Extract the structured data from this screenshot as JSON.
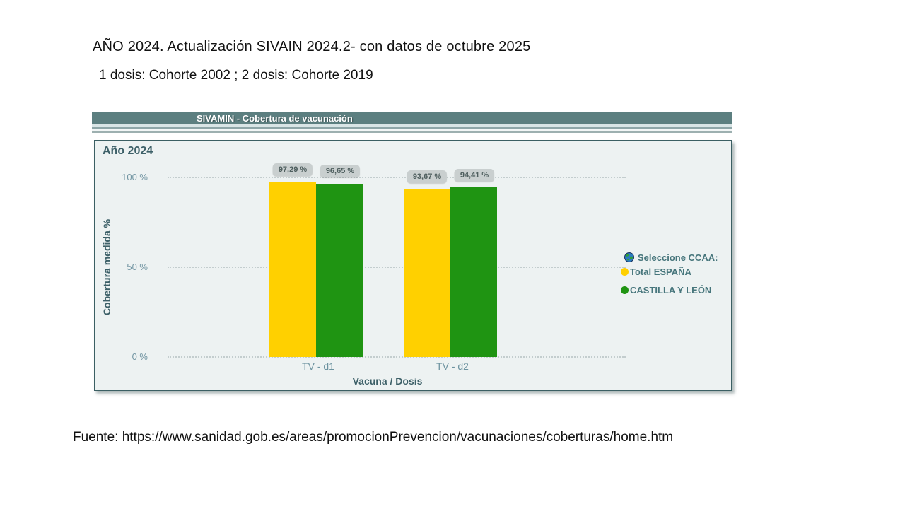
{
  "header": {
    "title": "AÑO 2024. Actualización SIVAIN 2024.2- con datos de octubre 2025",
    "subtitle": "1 dosis: Cohorte 2002 ; 2 dosis: Cohorte 2019"
  },
  "widget": {
    "titlebar": "SIVAMIN - Cobertura de vacunación"
  },
  "chart_data": {
    "type": "bar",
    "title": "Año 2024",
    "categories": [
      "TV - d1",
      "TV - d2"
    ],
    "series": [
      {
        "name": "Total ESPAÑA",
        "color": "#ffd000",
        "values": [
          97.29,
          93.67
        ],
        "value_labels": [
          "97,29 %",
          "93,67 %"
        ]
      },
      {
        "name": "CASTILLA Y LEÓN",
        "color": "#1f9412",
        "values": [
          96.65,
          94.41
        ],
        "value_labels": [
          "96,65 %",
          "94,41 %"
        ]
      }
    ],
    "xlabel": "Vacuna / Dosis",
    "ylabel": "Cobertura medida %",
    "ylim": [
      0,
      100
    ],
    "ytick_labels": [
      "100 %",
      "50 %",
      "0 %"
    ],
    "grid": "horizontal-dotted",
    "legend_position": "right",
    "legend_header": "Seleccione CCAA:"
  },
  "legend": {
    "header": "Seleccione CCAA:",
    "items": [
      {
        "label": "Total ESPAÑA",
        "color": "#ffd000"
      },
      {
        "label": "CASTILLA Y LEÓN",
        "color": "#1f9412"
      }
    ]
  },
  "footer": {
    "source": "Fuente: https://www.sanidad.gob.es/areas/promocionPrevencion/vacunaciones/coberturas/home.htm"
  }
}
